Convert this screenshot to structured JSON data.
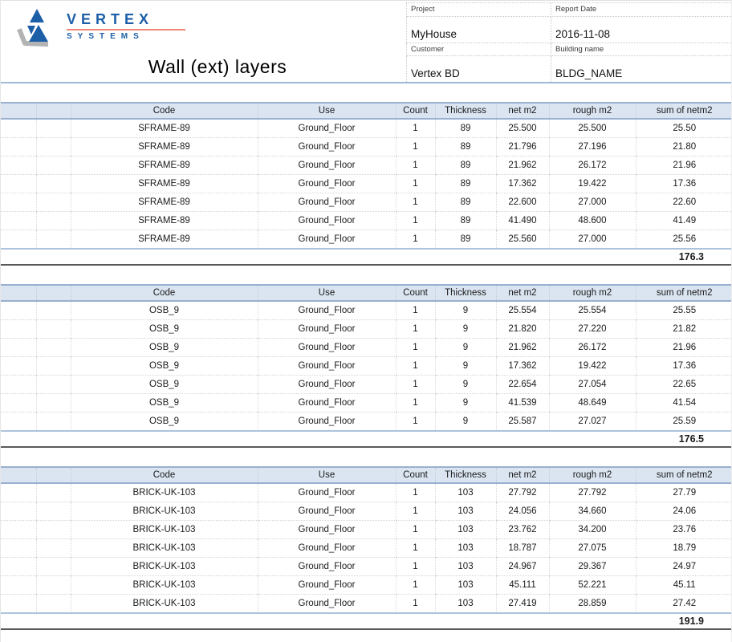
{
  "brand": {
    "name": "VERTEX",
    "subtitle": "SYSTEMS",
    "blue": "#1d5fa7",
    "red": "#ee8576",
    "gray": "#b3b3b3"
  },
  "title": "Wall (ext) layers",
  "info": {
    "project_label": "Project",
    "project_value": "MyHouse",
    "report_date_label": "Report Date",
    "report_date_value": "2016-11-08",
    "customer_label": "Customer",
    "customer_value": "Vertex BD",
    "building_label": "Building name",
    "building_value": "BLDG_NAME"
  },
  "table_headers": [
    "",
    "",
    "Code",
    "Use",
    "Count",
    "Thickness",
    "net m2",
    "rough m2",
    "sum of netm2"
  ],
  "tables": [
    {
      "rows": [
        [
          "SFRAME-89",
          "Ground_Floor",
          "1",
          "89",
          "25.500",
          "25.500",
          "25.50"
        ],
        [
          "SFRAME-89",
          "Ground_Floor",
          "1",
          "89",
          "21.796",
          "27.196",
          "21.80"
        ],
        [
          "SFRAME-89",
          "Ground_Floor",
          "1",
          "89",
          "21.962",
          "26.172",
          "21.96"
        ],
        [
          "SFRAME-89",
          "Ground_Floor",
          "1",
          "89",
          "17.362",
          "19.422",
          "17.36"
        ],
        [
          "SFRAME-89",
          "Ground_Floor",
          "1",
          "89",
          "22.600",
          "27.000",
          "22.60"
        ],
        [
          "SFRAME-89",
          "Ground_Floor",
          "1",
          "89",
          "41.490",
          "48.600",
          "41.49"
        ],
        [
          "SFRAME-89",
          "Ground_Floor",
          "1",
          "89",
          "25.560",
          "27.000",
          "25.56"
        ]
      ],
      "total": "176.3"
    },
    {
      "rows": [
        [
          "OSB_9",
          "Ground_Floor",
          "1",
          "9",
          "25.554",
          "25.554",
          "25.55"
        ],
        [
          "OSB_9",
          "Ground_Floor",
          "1",
          "9",
          "21.820",
          "27.220",
          "21.82"
        ],
        [
          "OSB_9",
          "Ground_Floor",
          "1",
          "9",
          "21.962",
          "26.172",
          "21.96"
        ],
        [
          "OSB_9",
          "Ground_Floor",
          "1",
          "9",
          "17.362",
          "19.422",
          "17.36"
        ],
        [
          "OSB_9",
          "Ground_Floor",
          "1",
          "9",
          "22.654",
          "27.054",
          "22.65"
        ],
        [
          "OSB_9",
          "Ground_Floor",
          "1",
          "9",
          "41.539",
          "48.649",
          "41.54"
        ],
        [
          "OSB_9",
          "Ground_Floor",
          "1",
          "9",
          "25.587",
          "27.027",
          "25.59"
        ]
      ],
      "total": "176.5"
    },
    {
      "rows": [
        [
          "BRICK-UK-103",
          "Ground_Floor",
          "1",
          "103",
          "27.792",
          "27.792",
          "27.79"
        ],
        [
          "BRICK-UK-103",
          "Ground_Floor",
          "1",
          "103",
          "24.056",
          "34.660",
          "24.06"
        ],
        [
          "BRICK-UK-103",
          "Ground_Floor",
          "1",
          "103",
          "23.762",
          "34.200",
          "23.76"
        ],
        [
          "BRICK-UK-103",
          "Ground_Floor",
          "1",
          "103",
          "18.787",
          "27.075",
          "18.79"
        ],
        [
          "BRICK-UK-103",
          "Ground_Floor",
          "1",
          "103",
          "24.967",
          "29.367",
          "24.97"
        ],
        [
          "BRICK-UK-103",
          "Ground_Floor",
          "1",
          "103",
          "45.111",
          "52.221",
          "45.11"
        ],
        [
          "BRICK-UK-103",
          "Ground_Floor",
          "1",
          "103",
          "27.419",
          "28.859",
          "27.42"
        ]
      ],
      "total": "191.9"
    }
  ],
  "colors": {
    "header_row_bg": "#dbe5f1",
    "header_row_border": "#9ab0d0",
    "total_top_border": "#aec3de",
    "total_bottom_border": "#595959",
    "grid_dotted": "#d4d4d4",
    "header_rule_blue": "#9fb9d8"
  }
}
